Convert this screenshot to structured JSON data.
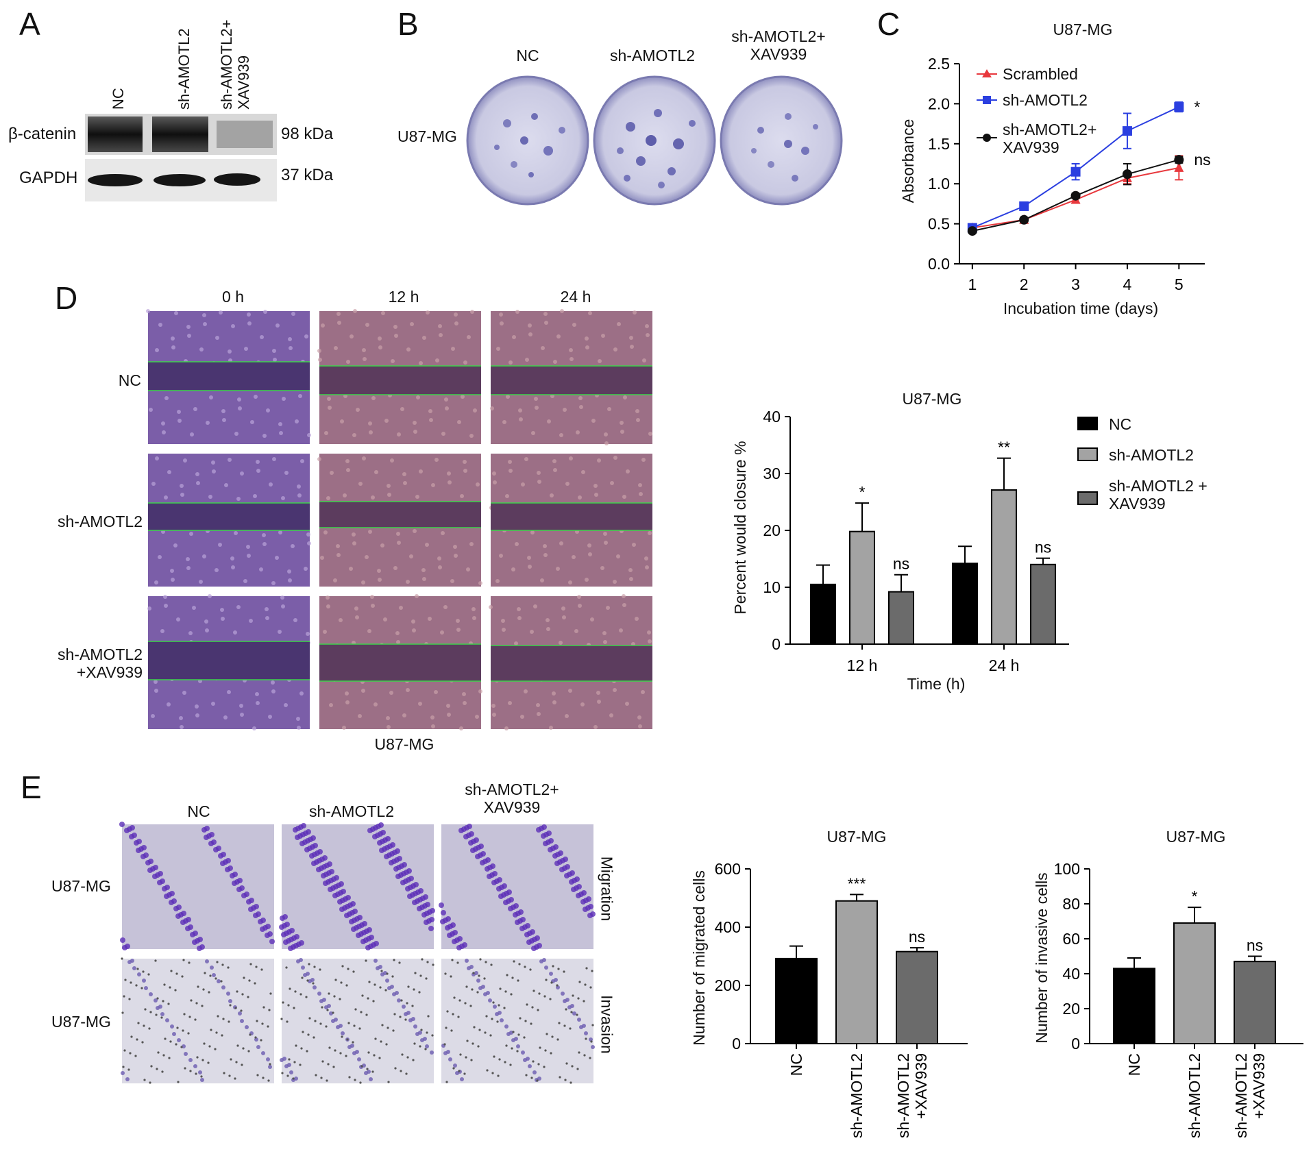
{
  "panels": {
    "A": "A",
    "B": "B",
    "C": "C",
    "D": "D",
    "E": "E"
  },
  "panelA": {
    "lanes": [
      "NC",
      "sh-AMOTL2",
      "sh-AMOTL2+\nXAV939"
    ],
    "rows": [
      {
        "label": "β-catenin",
        "kda": "98 kDa"
      },
      {
        "label": "GAPDH",
        "kda": "37 kDa"
      }
    ]
  },
  "panelB": {
    "cols": [
      "NC",
      "sh-AMOTL2",
      "sh-AMOTL2+\nXAV939"
    ],
    "row_label": "U87-MG"
  },
  "panelD": {
    "times": [
      "0 h",
      "12 h",
      "24 h"
    ],
    "rows": [
      "NC",
      "sh-AMOTL2",
      "sh-AMOTL2\n+XAV939"
    ],
    "caption": "U87-MG"
  },
  "panelE": {
    "cols": [
      "NC",
      "sh-AMOTL2",
      "sh-AMOTL2+\nXAV939"
    ],
    "rows": [
      "U87-MG",
      "U87-MG"
    ],
    "side": [
      "Migration",
      "Invasion"
    ]
  },
  "chart_data": [
    {
      "id": "C",
      "type": "line",
      "title": "U87-MG",
      "xlabel": "Incubation time (days)",
      "ylabel": "Absorbance",
      "x": [
        1,
        2,
        3,
        4,
        5
      ],
      "xlim": [
        0.75,
        5.5
      ],
      "ylim": [
        0,
        2.5
      ],
      "yticks": [
        "0.0",
        "0.5",
        "1.0",
        "1.5",
        "2.0",
        "2.5"
      ],
      "series": [
        {
          "name": "Scrambled",
          "color": "#e8383d",
          "marker": "triangle",
          "values": [
            0.45,
            0.55,
            0.8,
            1.07,
            1.2
          ],
          "err": [
            0.03,
            0.03,
            0.04,
            0.07,
            0.15
          ]
        },
        {
          "name": "sh-AMOTL2",
          "color": "#2b3fe0",
          "marker": "square",
          "values": [
            0.45,
            0.72,
            1.15,
            1.66,
            1.96
          ],
          "err": [
            0.03,
            0.04,
            0.1,
            0.22,
            0.06
          ]
        },
        {
          "name": "sh-AMOTL2+\nXAV939",
          "color": "#111111",
          "marker": "circle",
          "values": [
            0.41,
            0.55,
            0.85,
            1.12,
            1.3
          ],
          "err": [
            0.02,
            0.02,
            0.03,
            0.13,
            0.04
          ]
        }
      ],
      "annotations": [
        {
          "series": 1,
          "text": "*"
        },
        {
          "series": 2,
          "text": "ns"
        }
      ]
    },
    {
      "id": "D",
      "type": "bar",
      "title": "U87-MG",
      "xlabel": "Time (h)",
      "ylabel": "Percent would closure %",
      "categories": [
        "12 h",
        "24 h"
      ],
      "ylim": [
        0,
        40
      ],
      "yticks": [
        "0",
        "10",
        "20",
        "30",
        "40"
      ],
      "series": [
        {
          "name": "NC",
          "color": "#000000",
          "values": [
            10.5,
            14.2
          ],
          "err": [
            3.4,
            3.0
          ]
        },
        {
          "name": "sh-AMOTL2",
          "color": "#a3a3a3",
          "values": [
            19.8,
            27.1
          ],
          "err": [
            5.0,
            5.6
          ]
        },
        {
          "name": "sh-AMOTL2 +\nXAV939",
          "color": "#6b6b6b",
          "values": [
            9.2,
            14.0
          ],
          "err": [
            3.0,
            1.1
          ]
        }
      ],
      "annotations": [
        [
          "",
          "*",
          "ns"
        ],
        [
          "",
          "**",
          "ns"
        ]
      ]
    },
    {
      "id": "E-migration",
      "type": "bar",
      "title": "U87-MG",
      "ylabel": "Number of migrated cells",
      "categories": [
        "NC",
        "sh-AMOTL2",
        "sh-AMOTL2\n+XAV939"
      ],
      "colors": [
        "#000000",
        "#a3a3a3",
        "#6b6b6b"
      ],
      "values": [
        292,
        490,
        316
      ],
      "err": [
        43,
        22,
        13
      ],
      "ylim": [
        0,
        600
      ],
      "yticks": [
        "0",
        "200",
        "400",
        "600"
      ],
      "annotations": [
        "",
        "***",
        "ns"
      ]
    },
    {
      "id": "E-invasion",
      "type": "bar",
      "title": "U87-MG",
      "ylabel": "Number of invasive cells",
      "categories": [
        "NC",
        "sh-AMOTL2",
        "sh-AMOTL2\n+XAV939"
      ],
      "colors": [
        "#000000",
        "#a3a3a3",
        "#6b6b6b"
      ],
      "values": [
        43,
        69,
        47
      ],
      "err": [
        6,
        9,
        3
      ],
      "ylim": [
        0,
        100
      ],
      "yticks": [
        "0",
        "20",
        "40",
        "60",
        "80",
        "100"
      ],
      "annotations": [
        "",
        "*",
        "ns"
      ]
    }
  ]
}
